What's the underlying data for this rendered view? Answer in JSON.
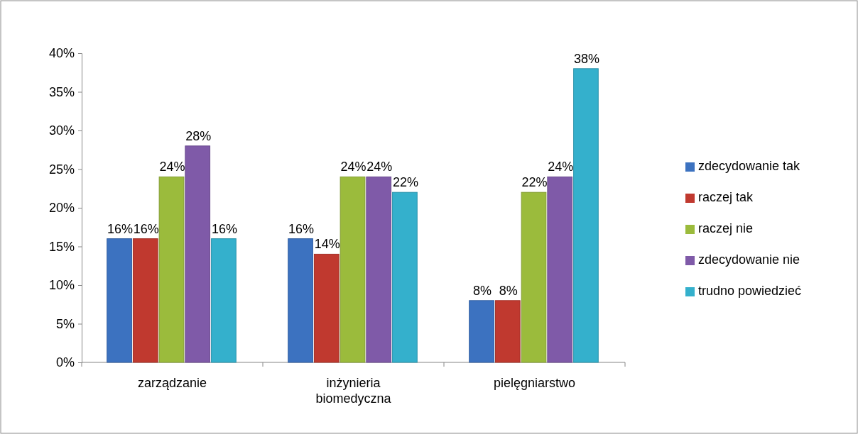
{
  "chart_data": {
    "type": "bar",
    "categories": [
      "zarządzanie",
      "inżynieria biomedyczna",
      "pielęgniarstwo"
    ],
    "series": [
      {
        "name": "zdecydowanie tak",
        "color": "#3c72c0",
        "values": [
          16,
          16,
          8
        ],
        "value_labels": [
          "16%",
          "16%",
          "8%"
        ]
      },
      {
        "name": "raczej tak",
        "color": "#c0392f",
        "values": [
          16,
          14,
          8
        ],
        "value_labels": [
          "16%",
          "14%",
          "8%"
        ]
      },
      {
        "name": "raczej nie",
        "color": "#9bbb3c",
        "values": [
          24,
          24,
          22
        ],
        "value_labels": [
          "24%",
          "24%",
          "22%"
        ]
      },
      {
        "name": "zdecydowanie nie",
        "color": "#7f5aa8",
        "values": [
          28,
          24,
          24
        ],
        "value_labels": [
          "28%",
          "24%",
          "24%"
        ]
      },
      {
        "name": "trudno powiedzieć",
        "color": "#34b0cc",
        "values": [
          16,
          22,
          38
        ],
        "value_labels": [
          "16%",
          "22%",
          "38%"
        ]
      }
    ],
    "ylim": [
      0,
      40
    ],
    "yticks": [
      {
        "value": 0,
        "label": "0%"
      },
      {
        "value": 5,
        "label": "5%"
      },
      {
        "value": 10,
        "label": "10%"
      },
      {
        "value": 15,
        "label": "15%"
      },
      {
        "value": 20,
        "label": "20%"
      },
      {
        "value": 25,
        "label": "25%"
      },
      {
        "value": 30,
        "label": "30%"
      },
      {
        "value": 35,
        "label": "35%"
      },
      {
        "value": 40,
        "label": "40%"
      }
    ],
    "grid": false,
    "legend": "right"
  }
}
